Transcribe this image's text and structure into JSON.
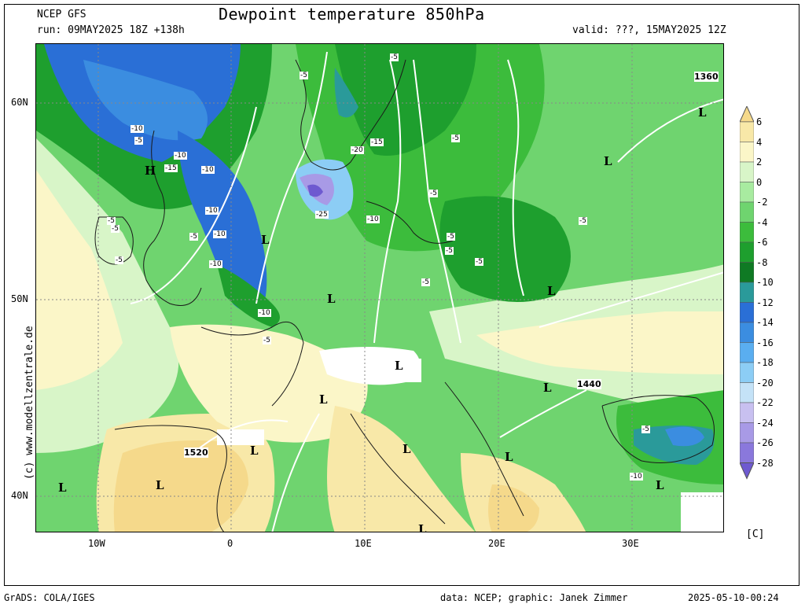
{
  "header": {
    "model": "NCEP GFS",
    "run": "run: 09MAY2025 18Z +138h",
    "title": "Dewpoint temperature 850hPa",
    "valid": "valid: ???, 15MAY2025 12Z"
  },
  "watermark": "(c) www.modellzentrale.de",
  "axes": {
    "lat_labels": [
      "60N",
      "50N",
      "40N"
    ],
    "lon_labels": [
      "10W",
      "0",
      "10E",
      "20E",
      "30E"
    ]
  },
  "colorbar": {
    "unit": "[C]",
    "ticks": [
      "6",
      "4",
      "2",
      "0",
      "-2",
      "-4",
      "-6",
      "-8",
      "-10",
      "-12",
      "-14",
      "-16",
      "-18",
      "-20",
      "-22",
      "-24",
      "-26",
      "-28"
    ],
    "colors": [
      "#f5d98b",
      "#f8e8a8",
      "#fbf6c8",
      "#d8f5c8",
      "#a8eba0",
      "#6fd46f",
      "#3cbc3c",
      "#1e9f2e",
      "#0f7a24",
      "#2a9a9a",
      "#2a6fd6",
      "#3b8de0",
      "#5aaef0",
      "#8ccdf5",
      "#c4e2f7",
      "#c8c0f0",
      "#a89ae6",
      "#8a78dc",
      "#6e5ad0"
    ]
  },
  "map_labels": {
    "lows": [
      "L",
      "L",
      "L",
      "L",
      "L",
      "L",
      "L",
      "L",
      "L",
      "L",
      "L",
      "L",
      "L",
      "L",
      "L"
    ],
    "high": "H",
    "contour_values": [
      "1360",
      "1440",
      "1520"
    ],
    "dewpoint_values": [
      "-10",
      "-5",
      "-10",
      "-15",
      "-10",
      "-5",
      "-5",
      "-10",
      "-5",
      "-10",
      "-5",
      "-10",
      "-25",
      "-10",
      "-15",
      "-20",
      "-5",
      "-5",
      "-5",
      "-5",
      "-5",
      "-5",
      "-5",
      "-5",
      "-5",
      "-10",
      "-5",
      "-5",
      "-10"
    ]
  },
  "footer": {
    "left": "GrADS: COLA/IGES",
    "center": "data: NCEP; graphic: Janek Zimmer",
    "right": "2025-05-10-00:24"
  }
}
